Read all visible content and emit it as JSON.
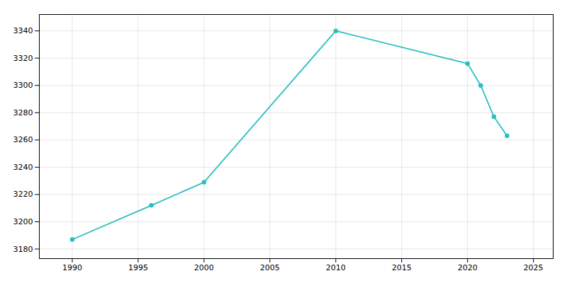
{
  "chart_data": {
    "type": "line",
    "x": [
      1990,
      1996,
      2000,
      2010,
      2020,
      2021,
      2022,
      2023
    ],
    "values": [
      3187,
      3212,
      3229,
      3340,
      3316,
      3300,
      3277,
      3263
    ],
    "color": "#29BFC2",
    "marker": "circle",
    "xlim": [
      1987.5,
      2026.5
    ],
    "ylim": [
      3173,
      3352
    ],
    "xticks": [
      1990,
      1995,
      2000,
      2005,
      2010,
      2015,
      2020,
      2025
    ],
    "yticks": [
      3180,
      3200,
      3220,
      3240,
      3260,
      3280,
      3300,
      3320,
      3340
    ],
    "grid": true
  }
}
